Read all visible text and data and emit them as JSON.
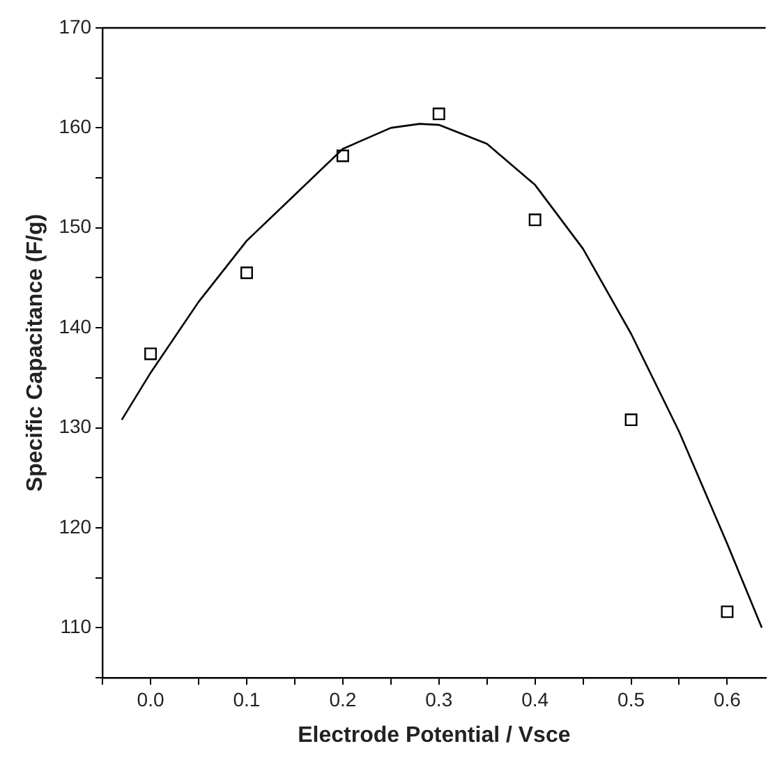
{
  "chart_data": {
    "type": "scatter",
    "xlabel": "Electrode Potential / Vsce",
    "ylabel": "Specific Capacitance (F/g)",
    "xlim": [
      -0.05,
      0.64
    ],
    "ylim": [
      105,
      170
    ],
    "xticks": [
      {
        "value": -0.05,
        "label": null
      },
      {
        "value": 0,
        "label": "0.0"
      },
      {
        "value": 0.05,
        "label": null
      },
      0.1,
      {
        "value": 0.15,
        "label": null
      },
      0.2,
      {
        "value": 0.25,
        "label": null
      },
      0.3,
      {
        "value": 0.35,
        "label": null
      },
      0.4,
      {
        "value": 0.45,
        "label": null
      },
      0.5,
      {
        "value": 0.55,
        "label": null
      },
      0.6
    ],
    "yticks": [
      {
        "value": 105,
        "label": null
      },
      110,
      {
        "value": 115,
        "label": null
      },
      120,
      {
        "value": 125,
        "label": null
      },
      130,
      {
        "value": 135,
        "label": null
      },
      140,
      {
        "value": 145,
        "label": null
      },
      150,
      {
        "value": 155,
        "label": null
      },
      160,
      {
        "value": 165,
        "label": null
      },
      170
    ],
    "grid": false,
    "legend": false,
    "series": [
      {
        "type": "scatter",
        "color": "#000000",
        "marker": "square",
        "x": [
          0,
          0.1,
          0.2,
          0.3,
          0.4,
          0.5,
          0.6
        ],
        "values": [
          137.4,
          145.5,
          157.2,
          161.4,
          150.8,
          130.8,
          111.6
        ]
      },
      {
        "type": "line",
        "color": "#000000",
        "marker": "none",
        "line_style": "solid",
        "x": [
          -0.03,
          0,
          0.05,
          0.1,
          0.15,
          0.2,
          0.25,
          0.28,
          0.3,
          0.35,
          0.4,
          0.45,
          0.5,
          0.55,
          0.6,
          0.636
        ],
        "values": [
          130.8,
          135.5,
          142.6,
          148.7,
          153.3,
          157.9,
          160,
          160.4,
          160.3,
          158.4,
          154.3,
          147.9,
          139.4,
          129.6,
          118.4,
          110
        ]
      }
    ]
  }
}
